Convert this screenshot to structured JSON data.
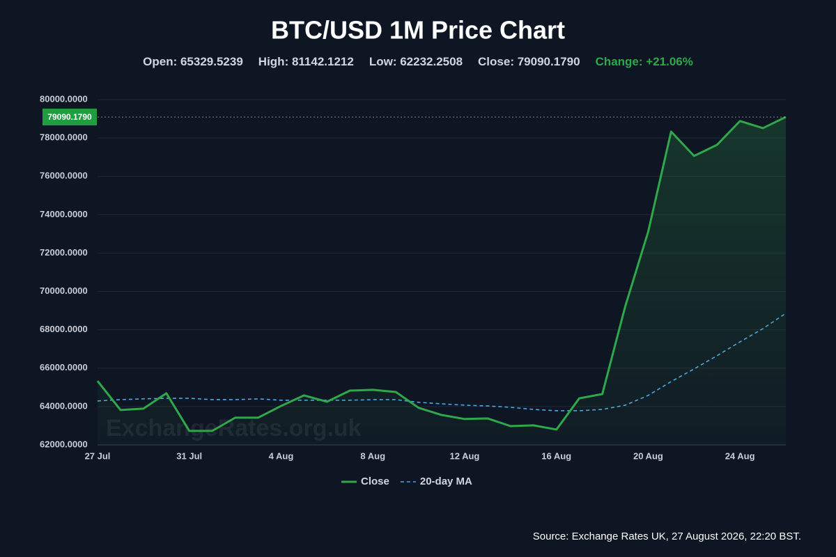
{
  "chart_data": {
    "type": "line",
    "title": "BTC/USD 1M Price Chart",
    "stats": [
      {
        "text": "Open: 65329.5239",
        "color": "#d0d6e0"
      },
      {
        "text": "High: 81142.1212",
        "color": "#d0d6e0"
      },
      {
        "text": "Low: 62232.2508",
        "color": "#d0d6e0"
      },
      {
        "text": "Close: 79090.1790",
        "color": "#d0d6e0"
      },
      {
        "text": "Change: +21.06%",
        "color": "#2ea84a"
      }
    ],
    "categories": [
      "27 Jul",
      null,
      null,
      null,
      "31 Jul",
      null,
      null,
      null,
      "4 Aug",
      null,
      null,
      null,
      "8 Aug",
      null,
      null,
      null,
      "12 Aug",
      null,
      null,
      null,
      "16 Aug",
      null,
      null,
      null,
      "20 Aug",
      null,
      null,
      null,
      "24 Aug",
      null,
      null
    ],
    "series": [
      {
        "name": "Close",
        "color": "#2ea84a",
        "dashed": false,
        "area": true,
        "values": [
          65330,
          63820,
          63890,
          64690,
          62730,
          62730,
          63420,
          63420,
          64030,
          64580,
          64250,
          64830,
          64870,
          64760,
          63930,
          63560,
          63350,
          63380,
          62980,
          63020,
          62800,
          64430,
          64650,
          69220,
          73110,
          78330,
          77060,
          77640,
          78880,
          78510,
          79090.179
        ]
      },
      {
        "name": "20-day MA",
        "color": "#4aa8e8",
        "dashed": true,
        "area": false,
        "values": [
          64290,
          64360,
          64400,
          64430,
          64430,
          64360,
          64360,
          64400,
          64330,
          64330,
          64330,
          64330,
          64360,
          64360,
          64220,
          64140,
          64070,
          64030,
          63960,
          63850,
          63780,
          63780,
          63850,
          64070,
          64580,
          65300,
          65960,
          66650,
          67370,
          68060,
          68860
        ]
      }
    ],
    "ylim": [
      62000,
      80000
    ],
    "yticks": [
      {
        "value": 62000,
        "label": "62000.0000"
      },
      {
        "value": 64000,
        "label": "64000.0000"
      },
      {
        "value": 66000,
        "label": "66000.0000"
      },
      {
        "value": 68000,
        "label": "68000.0000"
      },
      {
        "value": 70000,
        "label": "70000.0000"
      },
      {
        "value": 72000,
        "label": "72000.0000"
      },
      {
        "value": 74000,
        "label": "74000.0000"
      },
      {
        "value": 76000,
        "label": "76000.0000"
      },
      {
        "value": 78000,
        "label": "78000.0000"
      },
      {
        "value": 80000,
        "label": "80000.0000"
      }
    ],
    "grid": true,
    "price_marker": {
      "value": 79090.179,
      "label": "79090.1790"
    },
    "watermark": "ExchangeRates.org.uk",
    "source": "Source: Exchange Rates UK, 27 August 2026, 22:20 BST."
  }
}
